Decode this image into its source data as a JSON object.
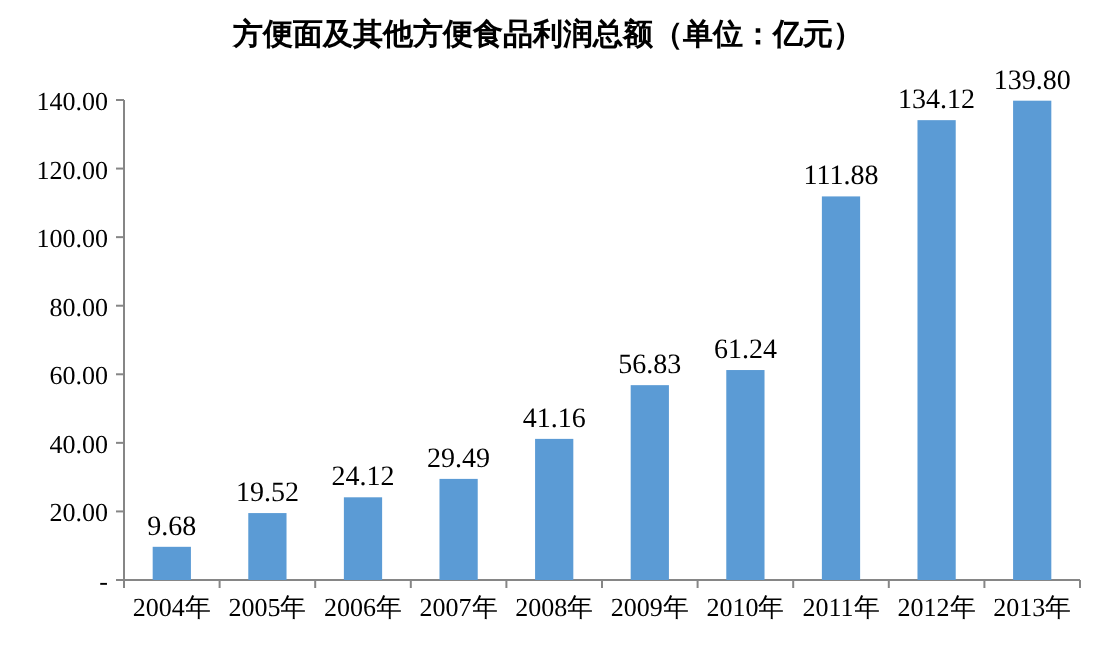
{
  "chart_data": {
    "type": "bar",
    "title": "方便面及其他方便食品利润总额（单位：亿元）",
    "categories": [
      "2004年",
      "2005年",
      "2006年",
      "2007年",
      "2008年",
      "2009年",
      "2010年",
      "2011年",
      "2012年",
      "2013年"
    ],
    "values": [
      9.68,
      19.52,
      24.12,
      29.49,
      41.16,
      56.83,
      61.24,
      111.88,
      134.12,
      139.8
    ],
    "value_labels": [
      "9.68",
      "19.52",
      "24.12",
      "29.49",
      "41.16",
      "56.83",
      "61.24",
      "111.88",
      "134.12",
      "139.80"
    ],
    "color": "#5b9bd5",
    "ylim": [
      0,
      140
    ],
    "yticks": [
      {
        "value": 0,
        "label": "-"
      },
      {
        "value": 20,
        "label": "20.00"
      },
      {
        "value": 40,
        "label": "40.00"
      },
      {
        "value": 60,
        "label": "60.00"
      },
      {
        "value": 80,
        "label": "80.00"
      },
      {
        "value": 100,
        "label": "100.00"
      },
      {
        "value": 120,
        "label": "120.00"
      },
      {
        "value": 140,
        "label": "140.00"
      }
    ],
    "grid": false
  }
}
